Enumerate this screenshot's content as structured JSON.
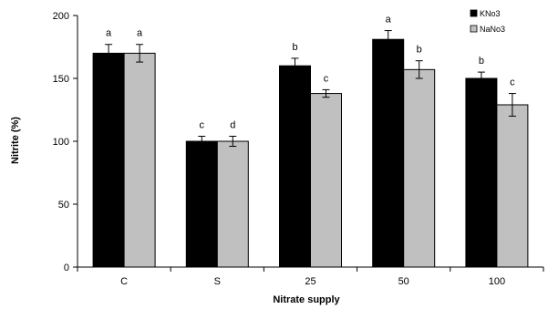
{
  "chart_data": {
    "type": "bar",
    "categories": [
      "C",
      "S",
      "25",
      "50",
      "100"
    ],
    "series": [
      {
        "name": "KNo3",
        "color": "#000000",
        "values": [
          170,
          100,
          160,
          181,
          150
        ],
        "errors": [
          7,
          4,
          6,
          7,
          5
        ],
        "letters": [
          "a",
          "c",
          "b",
          "a",
          "b"
        ]
      },
      {
        "name": "NaNo3",
        "color": "#c0c0c0",
        "values": [
          170,
          100,
          138,
          157,
          129
        ],
        "errors": [
          7,
          4,
          3,
          7,
          9
        ],
        "letters": [
          "a",
          "d",
          "c",
          "b",
          "c"
        ]
      }
    ],
    "xlabel": "Nitrate supply",
    "ylabel": "Nitrite (%)",
    "ylim": [
      0,
      200
    ],
    "yticks": [
      0,
      50,
      100,
      150,
      200
    ],
    "grid": false,
    "legend_position": "top-right"
  }
}
